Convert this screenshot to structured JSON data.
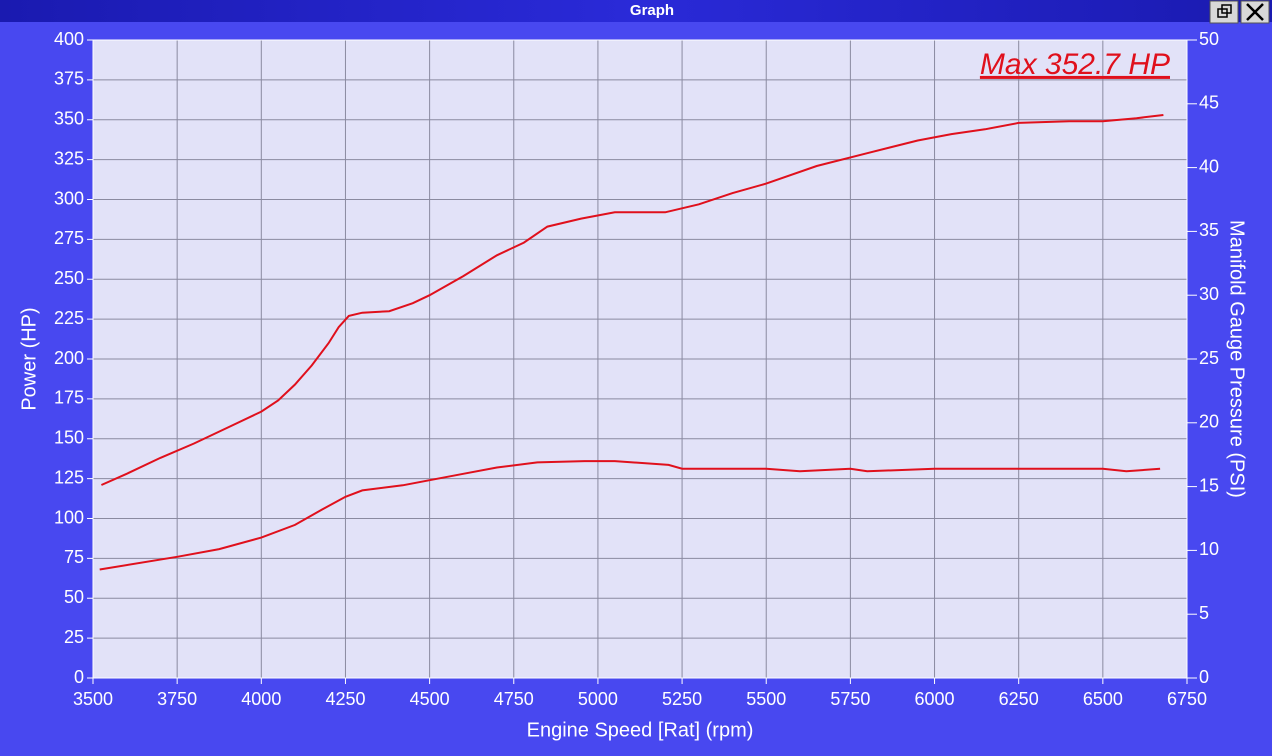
{
  "window": {
    "title": "Graph"
  },
  "chart_data": {
    "type": "line",
    "annotation": "Max 352.7 HP",
    "xlabel": "Engine Speed [Rat] (rpm)",
    "ylabel": "Power (HP)",
    "y2label": "Manifold Gauge Pressure (PSI)",
    "xlim": [
      3500,
      6750
    ],
    "xticks": [
      3500,
      3750,
      4000,
      4250,
      4500,
      4750,
      5000,
      5250,
      5500,
      5750,
      6000,
      6250,
      6500,
      6750
    ],
    "ylim": [
      0,
      400
    ],
    "yticks": [
      0,
      25,
      50,
      75,
      100,
      125,
      150,
      175,
      200,
      225,
      250,
      275,
      300,
      325,
      350,
      375,
      400
    ],
    "y2lim": [
      0,
      50
    ],
    "y2ticks": [
      0,
      5,
      10,
      15,
      20,
      25,
      30,
      35,
      40,
      45,
      50
    ],
    "grid": true,
    "series": [
      {
        "color": "#e0101c",
        "x": [
          3525,
          3600,
          3700,
          3800,
          3900,
          4000,
          4050,
          4100,
          4150,
          4200,
          4230,
          4260,
          4300,
          4380,
          4450,
          4500,
          4600,
          4700,
          4780,
          4850,
          4950,
          5050,
          5200,
          5300,
          5400,
          5500,
          5650,
          5800,
          5950,
          6050,
          6150,
          6250,
          6400,
          6500,
          6600,
          6680
        ],
        "values": [
          121,
          128,
          138,
          147,
          157,
          167,
          174,
          184,
          196,
          210,
          220,
          227,
          229,
          230,
          235,
          240,
          252,
          265,
          273,
          283,
          288,
          292,
          292,
          297,
          304,
          310,
          321,
          329,
          337,
          341,
          344,
          348,
          349,
          349,
          351,
          353
        ]
      },
      {
        "color": "#e0101c",
        "axis": "y2",
        "x": [
          3520,
          3750,
          3875,
          4000,
          4100,
          4180,
          4250,
          4300,
          4420,
          4500,
          4600,
          4700,
          4820,
          4960,
          5050,
          5210,
          5250,
          5500,
          5600,
          5750,
          5800,
          6000,
          6300,
          6500,
          6570,
          6670
        ],
        "values": [
          8.5,
          9.5,
          10.1,
          11.0,
          12.0,
          13.2,
          14.2,
          14.7,
          15.1,
          15.5,
          16.0,
          16.5,
          16.9,
          17.0,
          17.0,
          16.7,
          16.4,
          16.4,
          16.2,
          16.4,
          16.2,
          16.4,
          16.4,
          16.4,
          16.2,
          16.4
        ]
      }
    ]
  }
}
